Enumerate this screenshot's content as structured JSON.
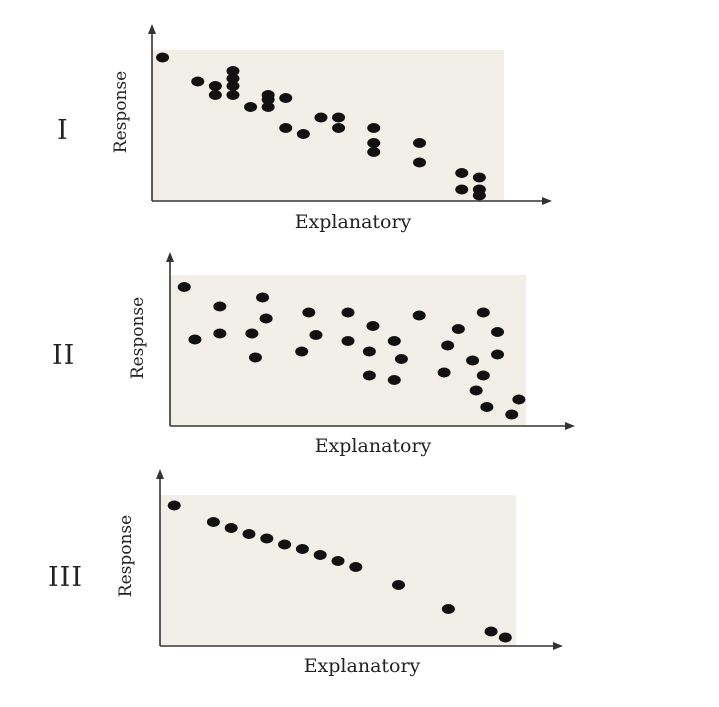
{
  "colors": {
    "plot_bg": "#f2efe8",
    "marker": "#111111",
    "axis": "#333333"
  },
  "chart_data": [
    {
      "type": "scatter",
      "panel_label": "I",
      "xlabel": "Explanatory",
      "ylabel": "Response",
      "xlim": [
        0,
        10
      ],
      "ylim": [
        0,
        10
      ],
      "points": [
        [
          0.3,
          9.5
        ],
        [
          1.3,
          7.9
        ],
        [
          1.8,
          7.6
        ],
        [
          2.3,
          8.6
        ],
        [
          2.3,
          8.1
        ],
        [
          2.3,
          7.6
        ],
        [
          1.8,
          7.0
        ],
        [
          2.3,
          7.0
        ],
        [
          2.8,
          6.2
        ],
        [
          3.3,
          6.2
        ],
        [
          3.3,
          6.7
        ],
        [
          3.3,
          7.0
        ],
        [
          3.8,
          6.8
        ],
        [
          3.8,
          4.8
        ],
        [
          4.3,
          4.4
        ],
        [
          4.8,
          5.5
        ],
        [
          5.3,
          5.5
        ],
        [
          5.3,
          4.8
        ],
        [
          6.3,
          4.8
        ],
        [
          6.3,
          3.8
        ],
        [
          6.3,
          3.2
        ],
        [
          7.6,
          3.8
        ],
        [
          7.6,
          2.5
        ],
        [
          8.8,
          1.8
        ],
        [
          9.3,
          1.5
        ],
        [
          8.8,
          0.7
        ],
        [
          9.3,
          0.7
        ],
        [
          9.3,
          0.3
        ]
      ]
    },
    {
      "type": "scatter",
      "panel_label": "II",
      "xlabel": "Explanatory",
      "ylabel": "Response",
      "xlim": [
        0,
        10
      ],
      "ylim": [
        0,
        10
      ],
      "points": [
        [
          0.4,
          9.2
        ],
        [
          0.7,
          5.7
        ],
        [
          1.4,
          7.9
        ],
        [
          1.4,
          6.1
        ],
        [
          2.3,
          6.1
        ],
        [
          2.4,
          4.5
        ],
        [
          2.6,
          8.5
        ],
        [
          2.7,
          7.1
        ],
        [
          3.7,
          4.9
        ],
        [
          3.9,
          7.5
        ],
        [
          4.1,
          6.0
        ],
        [
          5.0,
          7.5
        ],
        [
          5.0,
          5.6
        ],
        [
          5.7,
          6.6
        ],
        [
          5.6,
          4.9
        ],
        [
          5.6,
          3.3
        ],
        [
          6.3,
          5.6
        ],
        [
          6.3,
          3.0
        ],
        [
          6.5,
          4.4
        ],
        [
          7.0,
          7.3
        ],
        [
          7.7,
          3.5
        ],
        [
          7.8,
          5.3
        ],
        [
          8.1,
          6.4
        ],
        [
          8.6,
          2.3
        ],
        [
          8.5,
          4.3
        ],
        [
          8.8,
          7.5
        ],
        [
          8.8,
          3.3
        ],
        [
          9.2,
          6.2
        ],
        [
          9.2,
          4.7
        ],
        [
          8.9,
          1.2
        ],
        [
          9.6,
          0.7
        ],
        [
          9.8,
          1.7
        ]
      ]
    },
    {
      "type": "scatter",
      "panel_label": "III",
      "xlabel": "Explanatory",
      "ylabel": "Response",
      "xlim": [
        0,
        10
      ],
      "ylim": [
        0,
        10
      ],
      "points": [
        [
          0.4,
          9.3
        ],
        [
          1.5,
          8.2
        ],
        [
          2.0,
          7.8
        ],
        [
          2.5,
          7.4
        ],
        [
          3.0,
          7.1
        ],
        [
          3.5,
          6.7
        ],
        [
          4.0,
          6.4
        ],
        [
          4.5,
          6.0
        ],
        [
          5.0,
          5.6
        ],
        [
          5.5,
          5.2
        ],
        [
          6.7,
          4.0
        ],
        [
          8.1,
          2.4
        ],
        [
          9.3,
          0.9
        ],
        [
          9.7,
          0.5
        ]
      ]
    }
  ]
}
